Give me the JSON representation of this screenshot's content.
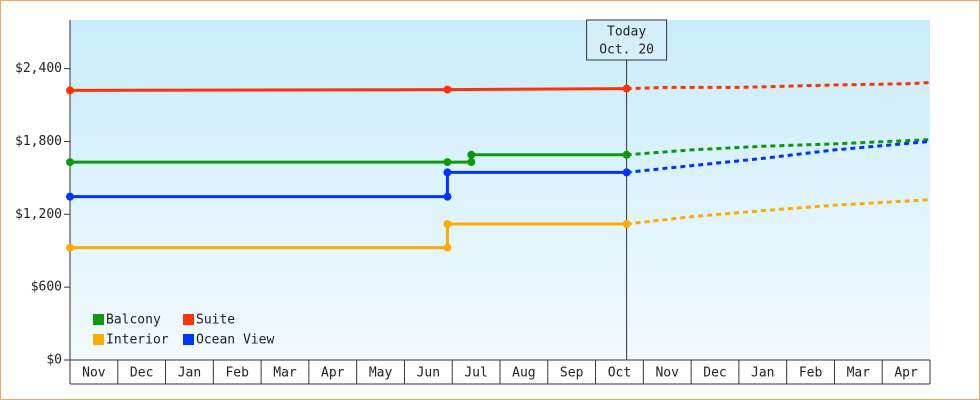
{
  "chart_data": {
    "type": "line",
    "categories": [
      "Nov",
      "Dec",
      "Jan",
      "Feb",
      "Mar",
      "Apr",
      "May",
      "Jun",
      "Jul",
      "Aug",
      "Sep",
      "Oct",
      "Nov",
      "Dec",
      "Jan",
      "Feb",
      "Mar",
      "Apr"
    ],
    "xlim": [
      0,
      18
    ],
    "ylim": [
      0,
      2800
    ],
    "yticks": [
      {
        "value": 0,
        "label": "$0"
      },
      {
        "value": 600,
        "label": "$600"
      },
      {
        "value": 1200,
        "label": "$1,200"
      },
      {
        "value": 1800,
        "label": "$1,800"
      },
      {
        "value": 2400,
        "label": "$2,400"
      }
    ],
    "today": {
      "x": 11.65,
      "label": [
        "Today",
        "Oct. 20"
      ]
    },
    "series": [
      {
        "name": "Balcony",
        "color": "#0a9a0a",
        "x": [
          0,
          7.9,
          8.4,
          8.4,
          11.65
        ],
        "values": [
          1630,
          1630,
          1630,
          1690,
          1690
        ],
        "forecast_x": [
          11.65,
          13,
          14.5,
          16,
          18
        ],
        "forecast_values": [
          1690,
          1730,
          1760,
          1780,
          1815
        ]
      },
      {
        "name": "Suite",
        "color": "#ff3300",
        "x": [
          0,
          7.9,
          11.65
        ],
        "values": [
          2220,
          2227,
          2235
        ],
        "forecast_x": [
          11.65,
          12.5,
          14,
          16,
          17.5,
          18
        ],
        "forecast_values": [
          2235,
          2245,
          2245,
          2265,
          2275,
          2285
        ]
      },
      {
        "name": "Interior",
        "color": "#ffaa00",
        "x": [
          0,
          7.9,
          7.9,
          11.65
        ],
        "values": [
          925,
          925,
          1120,
          1120
        ],
        "forecast_x": [
          11.65,
          13,
          14.5,
          16,
          18
        ],
        "forecast_values": [
          1120,
          1180,
          1230,
          1275,
          1320
        ]
      },
      {
        "name": "Ocean View",
        "color": "#0033ff",
        "x": [
          0,
          7.9,
          7.9,
          11.65
        ],
        "values": [
          1345,
          1345,
          1545,
          1545
        ],
        "forecast_x": [
          11.65,
          13,
          14.5,
          16,
          18
        ],
        "forecast_values": [
          1545,
          1600,
          1660,
          1730,
          1800
        ]
      }
    ]
  }
}
